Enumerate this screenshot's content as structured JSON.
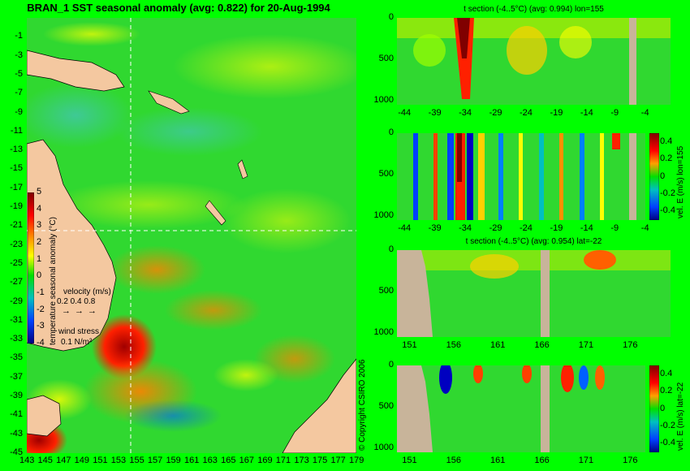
{
  "title": "BRAN_1 SST seasonal anomaly (avg: 0.822) for 20-Aug-1994",
  "copyright": "© Copyright CSIRO 2006",
  "colors": {
    "background": "#00ff00",
    "land": "#f4c8a0",
    "bathy": "#c8b49a"
  },
  "chart_data": [
    {
      "id": "map",
      "type": "heatmap",
      "title": "BRAN_1 SST seasonal anomaly (avg: 0.822) for 20-Aug-1994",
      "lat_ticks": [
        "-1",
        "-3",
        "-5",
        "-7",
        "-9",
        "-11",
        "-13",
        "-15",
        "-17",
        "-19",
        "-21",
        "-23",
        "-25",
        "-27",
        "-29",
        "-31",
        "-33",
        "-35",
        "-37",
        "-39",
        "-41",
        "-43",
        "-45"
      ],
      "lon_ticks": [
        "143",
        "145",
        "147",
        "149",
        "151",
        "153",
        "155",
        "157",
        "159",
        "161",
        "163",
        "165",
        "167",
        "169",
        "171",
        "173",
        "175",
        "177",
        "179"
      ],
      "xlim": [
        143,
        179
      ],
      "ylim": [
        -45,
        1
      ],
      "section_lines": {
        "lon": 155,
        "lat": -22
      },
      "colorbar": {
        "label": "temperature seasonal anomaly (°C)",
        "ticks": [
          "5",
          "4",
          "3",
          "2",
          "1",
          "0",
          "-1",
          "-2",
          "-3",
          "-4"
        ],
        "range": [
          -4,
          5
        ]
      },
      "velocity_legend": {
        "label": "velocity (m/s)",
        "values": "0.2 0.4 0.8"
      },
      "wind_legend": {
        "label": "wind stress",
        "value": "0.1 N/m²"
      }
    },
    {
      "id": "t_lon155",
      "type": "heatmap",
      "title": "t section (-4..5°C) (avg: 0.994) lon=155",
      "x_ticks": [
        "-44",
        "-39",
        "-34",
        "-29",
        "-24",
        "-19",
        "-14",
        "-9",
        "-4"
      ],
      "y_ticks": [
        "0",
        "500",
        "1000"
      ],
      "xlim": [
        -45.5,
        -0.5
      ],
      "ylim": [
        1050,
        0
      ]
    },
    {
      "id": "vel_lon155",
      "type": "heatmap",
      "title": "",
      "x_ticks": [
        "-44",
        "-39",
        "-34",
        "-29",
        "-24",
        "-19",
        "-14",
        "-9",
        "-4"
      ],
      "y_ticks": [
        "0",
        "500",
        "1000"
      ],
      "xlim": [
        -45.5,
        -0.5
      ],
      "ylim": [
        1050,
        0
      ],
      "colorbar": {
        "label": "vel. E (m/s) lon=155",
        "ticks": [
          "0.4",
          "0.2",
          "0",
          "-0.2",
          "-0.4"
        ]
      }
    },
    {
      "id": "t_lat22",
      "type": "heatmap",
      "title": "t section (-4..5°C) (avg: 0.954) lat=-22",
      "x_ticks": [
        "151",
        "156",
        "161",
        "166",
        "171",
        "176"
      ],
      "y_ticks": [
        "0",
        "500",
        "1000"
      ],
      "xlim": [
        149.5,
        180.5
      ],
      "ylim": [
        1050,
        0
      ]
    },
    {
      "id": "vel_lat22",
      "type": "heatmap",
      "title": "",
      "x_ticks": [
        "151",
        "156",
        "161",
        "166",
        "171",
        "176"
      ],
      "y_ticks": [
        "0",
        "500",
        "1000"
      ],
      "xlim": [
        149.5,
        180.5
      ],
      "ylim": [
        1050,
        0
      ],
      "colorbar": {
        "label": "vel. E (m/s) lat=-22",
        "ticks": [
          "0.4",
          "0.2",
          "0",
          "-0.2",
          "-0.4"
        ]
      }
    }
  ]
}
